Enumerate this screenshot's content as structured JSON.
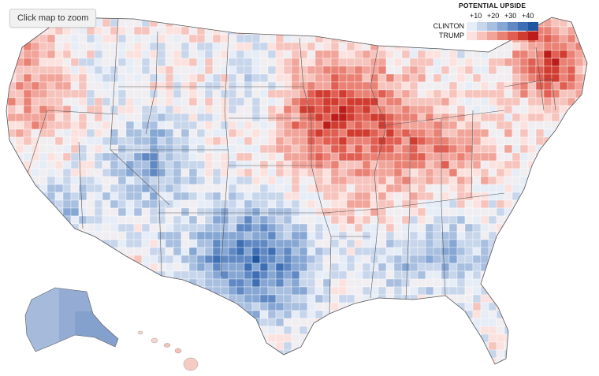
{
  "zoom_button": {
    "label": "Click map to zoom"
  },
  "legend": {
    "title": "POTENTIAL UPSIDE",
    "ticks": [
      "+10",
      "+20",
      "+30",
      "+40"
    ],
    "rows": [
      {
        "label": "CLINTON",
        "colors": [
          "#e6edf7",
          "#c8d6ec",
          "#a8bfe0",
          "#86a6d3",
          "#6089c4",
          "#3e6eb3",
          "#1f56a0"
        ]
      },
      {
        "label": "TRUMP",
        "colors": [
          "#fbe2de",
          "#f6c4bd",
          "#f1a49a",
          "#ea8175",
          "#e05f52",
          "#d13c31",
          "#bb1e1a"
        ]
      }
    ]
  },
  "map": {
    "title": "",
    "regions_shown": [
      "Contiguous United States",
      "Alaska",
      "Hawaii"
    ],
    "color_encoding": "diverging: blue = Clinton potential upside, red = Trump potential upside"
  }
}
